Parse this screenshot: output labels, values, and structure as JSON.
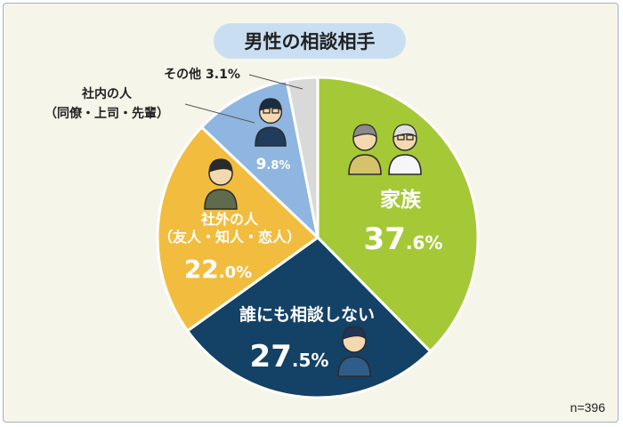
{
  "title": "男性の相談相手",
  "n_label": "n=396",
  "chart_data": {
    "type": "pie",
    "title": "男性の相談相手",
    "n": 396,
    "slices": [
      {
        "label_lines": [
          "家族"
        ],
        "value": 37.6,
        "int": "37",
        "dec": ".6%",
        "color": "#a5c936",
        "text_color": "#ffffff"
      },
      {
        "label_lines": [
          "誰にも相談しない"
        ],
        "value": 27.5,
        "int": "27",
        "dec": ".5%",
        "color": "#144166",
        "text_color": "#ffffff"
      },
      {
        "label_lines": [
          "社外の人",
          "（友人・知人・恋人）"
        ],
        "value": 22.0,
        "int": "22",
        "dec": ".0%",
        "color": "#f2bd3e",
        "text_color": "#ffffff"
      },
      {
        "label_lines": [
          "社内の人",
          "（同僚・上司・先輩）"
        ],
        "value": 9.8,
        "int": "9",
        "dec": ".8%",
        "color": "#8fb6e0",
        "text_color": "#ffffff"
      },
      {
        "label_lines": [
          "その他"
        ],
        "value": 3.1,
        "int": "3",
        "dec": ".1%",
        "color": "#d9d9d9",
        "text_color": "#222222"
      }
    ]
  }
}
